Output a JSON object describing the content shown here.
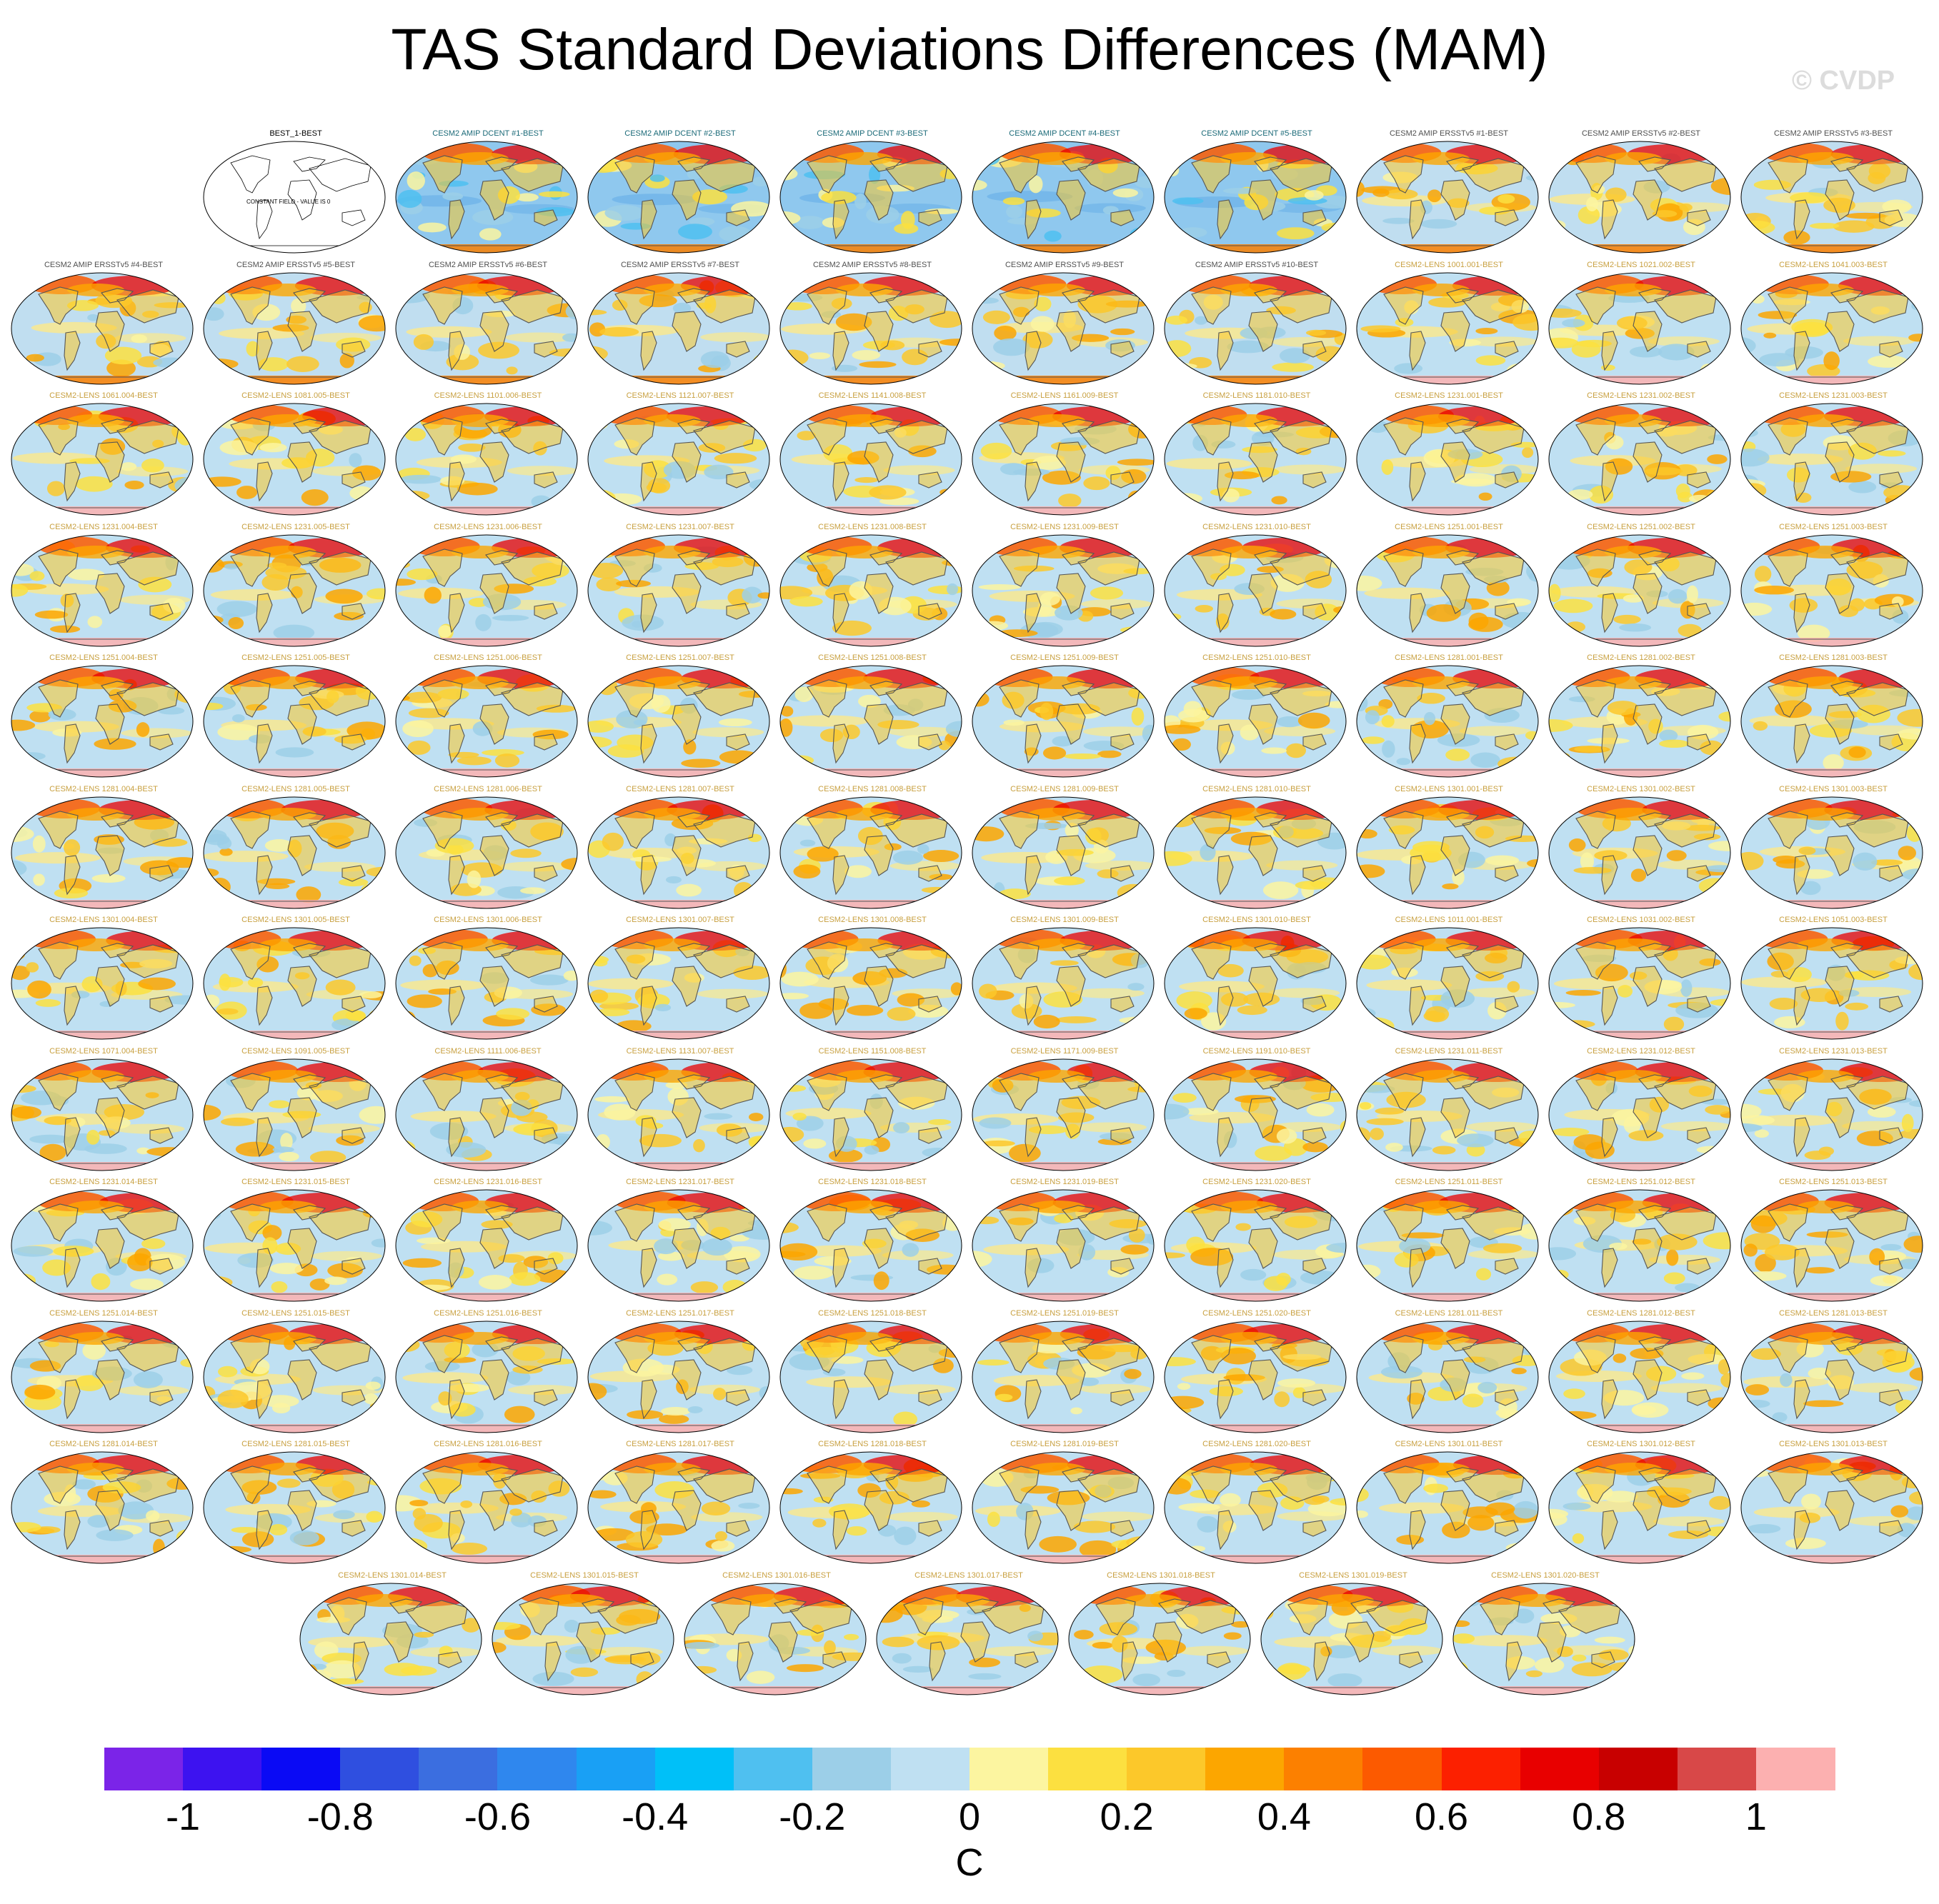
{
  "title": "TAS Standard Deviations Differences (MAM)",
  "watermark": "© CVDP",
  "constant_field_text": "CONSTANT FIELD - VALUE IS 0",
  "panels": [
    "BEST_1-BEST",
    "CESM2 AMIP DCENT #1-BEST",
    "CESM2 AMIP DCENT #2-BEST",
    "CESM2 AMIP DCENT #3-BEST",
    "CESM2 AMIP DCENT #4-BEST",
    "CESM2 AMIP DCENT #5-BEST",
    "CESM2 AMIP ERSSTv5 #1-BEST",
    "CESM2 AMIP ERSSTv5 #2-BEST",
    "CESM2 AMIP ERSSTv5 #3-BEST",
    "CESM2 AMIP ERSSTv5 #4-BEST",
    "CESM2 AMIP ERSSTv5 #5-BEST",
    "CESM2 AMIP ERSSTv5 #6-BEST",
    "CESM2 AMIP ERSSTv5 #7-BEST",
    "CESM2 AMIP ERSSTv5 #8-BEST",
    "CESM2 AMIP ERSSTv5 #9-BEST",
    "CESM2 AMIP ERSSTv5 #10-BEST",
    "CESM2-LENS 1001.001-BEST",
    "CESM2-LENS 1021.002-BEST",
    "CESM2-LENS 1041.003-BEST",
    "CESM2-LENS 1061.004-BEST",
    "CESM2-LENS 1081.005-BEST",
    "CESM2-LENS 1101.006-BEST",
    "CESM2-LENS 1121.007-BEST",
    "CESM2-LENS 1141.008-BEST",
    "CESM2-LENS 1161.009-BEST",
    "CESM2-LENS 1181.010-BEST",
    "CESM2-LENS 1231.001-BEST",
    "CESM2-LENS 1231.002-BEST",
    "CESM2-LENS 1231.003-BEST",
    "CESM2-LENS 1231.004-BEST",
    "CESM2-LENS 1231.005-BEST",
    "CESM2-LENS 1231.006-BEST",
    "CESM2-LENS 1231.007-BEST",
    "CESM2-LENS 1231.008-BEST",
    "CESM2-LENS 1231.009-BEST",
    "CESM2-LENS 1231.010-BEST",
    "CESM2-LENS 1251.001-BEST",
    "CESM2-LENS 1251.002-BEST",
    "CESM2-LENS 1251.003-BEST",
    "CESM2-LENS 1251.004-BEST",
    "CESM2-LENS 1251.005-BEST",
    "CESM2-LENS 1251.006-BEST",
    "CESM2-LENS 1251.007-BEST",
    "CESM2-LENS 1251.008-BEST",
    "CESM2-LENS 1251.009-BEST",
    "CESM2-LENS 1251.010-BEST",
    "CESM2-LENS 1281.001-BEST",
    "CESM2-LENS 1281.002-BEST",
    "CESM2-LENS 1281.003-BEST",
    "CESM2-LENS 1281.004-BEST",
    "CESM2-LENS 1281.005-BEST",
    "CESM2-LENS 1281.006-BEST",
    "CESM2-LENS 1281.007-BEST",
    "CESM2-LENS 1281.008-BEST",
    "CESM2-LENS 1281.009-BEST",
    "CESM2-LENS 1281.010-BEST",
    "CESM2-LENS 1301.001-BEST",
    "CESM2-LENS 1301.002-BEST",
    "CESM2-LENS 1301.003-BEST",
    "CESM2-LENS 1301.004-BEST",
    "CESM2-LENS 1301.005-BEST",
    "CESM2-LENS 1301.006-BEST",
    "CESM2-LENS 1301.007-BEST",
    "CESM2-LENS 1301.008-BEST",
    "CESM2-LENS 1301.009-BEST",
    "CESM2-LENS 1301.010-BEST",
    "CESM2-LENS 1011.001-BEST",
    "CESM2-LENS 1031.002-BEST",
    "CESM2-LENS 1051.003-BEST",
    "CESM2-LENS 1071.004-BEST",
    "CESM2-LENS 1091.005-BEST",
    "CESM2-LENS 1111.006-BEST",
    "CESM2-LENS 1131.007-BEST",
    "CESM2-LENS 1151.008-BEST",
    "CESM2-LENS 1171.009-BEST",
    "CESM2-LENS 1191.010-BEST",
    "CESM2-LENS 1231.011-BEST",
    "CESM2-LENS 1231.012-BEST",
    "CESM2-LENS 1231.013-BEST",
    "CESM2-LENS 1231.014-BEST",
    "CESM2-LENS 1231.015-BEST",
    "CESM2-LENS 1231.016-BEST",
    "CESM2-LENS 1231.017-BEST",
    "CESM2-LENS 1231.018-BEST",
    "CESM2-LENS 1231.019-BEST",
    "CESM2-LENS 1231.020-BEST",
    "CESM2-LENS 1251.011-BEST",
    "CESM2-LENS 1251.012-BEST",
    "CESM2-LENS 1251.013-BEST",
    "CESM2-LENS 1251.014-BEST",
    "CESM2-LENS 1251.015-BEST",
    "CESM2-LENS 1251.016-BEST",
    "CESM2-LENS 1251.017-BEST",
    "CESM2-LENS 1251.018-BEST",
    "CESM2-LENS 1251.019-BEST",
    "CESM2-LENS 1251.020-BEST",
    "CESM2-LENS 1281.011-BEST",
    "CESM2-LENS 1281.012-BEST",
    "CESM2-LENS 1281.013-BEST",
    "CESM2-LENS 1281.014-BEST",
    "CESM2-LENS 1281.015-BEST",
    "CESM2-LENS 1281.016-BEST",
    "CESM2-LENS 1281.017-BEST",
    "CESM2-LENS 1281.018-BEST",
    "CESM2-LENS 1281.019-BEST",
    "CESM2-LENS 1281.020-BEST",
    "CESM2-LENS 1301.011-BEST",
    "CESM2-LENS 1301.012-BEST",
    "CESM2-LENS 1301.013-BEST",
    "CESM2-LENS 1301.014-BEST",
    "CESM2-LENS 1301.015-BEST",
    "CESM2-LENS 1301.016-BEST",
    "CESM2-LENS 1301.017-BEST",
    "CESM2-LENS 1301.018-BEST",
    "CESM2-LENS 1301.019-BEST",
    "CESM2-LENS 1301.020-BEST"
  ],
  "colorbar": {
    "colors": [
      "#7b24e8",
      "#3d12f0",
      "#0a0af5",
      "#2f4fe0",
      "#3b6ee0",
      "#2f87ee",
      "#19a0f5",
      "#00c0f8",
      "#4fc0f0",
      "#9ccfe8",
      "#bfe0f2",
      "#fcf5a0",
      "#fce040",
      "#fcc82a",
      "#fca600",
      "#fc8000",
      "#fc5a00",
      "#fc2000",
      "#e80000",
      "#c80000",
      "#d84848",
      "#fcb0b0"
    ],
    "ticks": [
      "-1",
      "-0.8",
      "-0.6",
      "-0.4",
      "-0.2",
      "0",
      "0.2",
      "0.4",
      "0.6",
      "0.8",
      "1"
    ],
    "unit": "C"
  }
}
